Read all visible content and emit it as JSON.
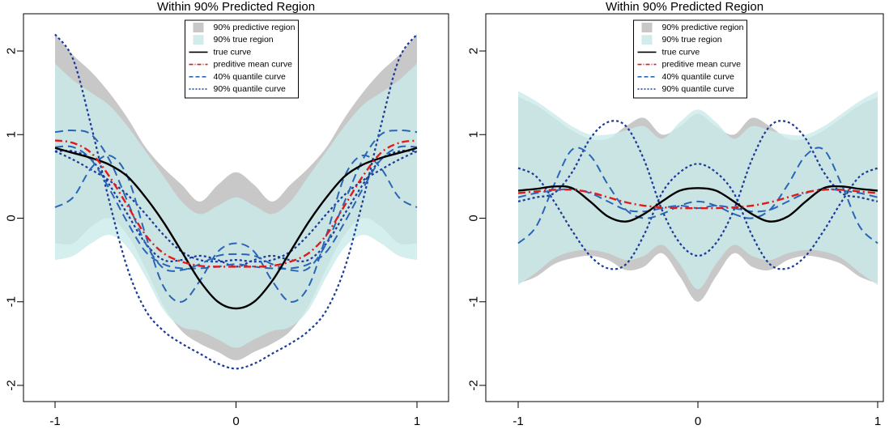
{
  "chart_data": [
    {
      "type": "line",
      "title": "Within 90% Predicted Region",
      "xlabel": "",
      "ylabel": "",
      "xlim": [
        -1,
        1
      ],
      "ylim": [
        -2.2,
        2.2
      ],
      "x_ticks": [
        "-1",
        "0",
        "1"
      ],
      "y_ticks": [
        "-2",
        "-1",
        "0",
        "1",
        "2"
      ],
      "grid": false,
      "legend_position": "top-center",
      "legend": [
        {
          "label": "90% predictive region",
          "kind": "fill",
          "color": "#c8c8c8"
        },
        {
          "label": "90% true region",
          "kind": "fill",
          "color": "#d2ecec"
        },
        {
          "label": "true curve",
          "kind": "solid",
          "color": "#000000"
        },
        {
          "label": "preditive mean curve",
          "kind": "dashdot",
          "color": "#e11b1b"
        },
        {
          "label": "40% quantile curve",
          "kind": "longdash",
          "color": "#2a66b5"
        },
        {
          "label": "90% quantile curve",
          "kind": "dotted",
          "color": "#1b3a98"
        }
      ],
      "x": [
        -1,
        -0.9,
        -0.8,
        -0.7,
        -0.6,
        -0.5,
        -0.4,
        -0.3,
        -0.2,
        -0.1,
        0,
        0.1,
        0.2,
        0.3,
        0.4,
        0.5,
        0.6,
        0.7,
        0.8,
        0.9,
        1
      ],
      "predictive_region": {
        "lower": [
          -0.3,
          -0.3,
          -0.1,
          0.0,
          -0.2,
          -0.6,
          -1.05,
          -1.35,
          -1.5,
          -1.6,
          -1.7,
          -1.6,
          -1.5,
          -1.35,
          -1.05,
          -0.6,
          -0.2,
          0.0,
          -0.1,
          -0.3,
          -0.3
        ],
        "upper": [
          2.2,
          1.95,
          1.75,
          1.5,
          1.2,
          0.85,
          0.6,
          0.4,
          0.2,
          0.4,
          0.55,
          0.4,
          0.2,
          0.4,
          0.6,
          0.85,
          1.2,
          1.5,
          1.75,
          1.95,
          2.2
        ]
      },
      "true_region": {
        "lower": [
          -0.5,
          -0.45,
          -0.3,
          -0.2,
          -0.35,
          -0.7,
          -1.1,
          -1.3,
          -1.35,
          -1.45,
          -1.55,
          -1.45,
          -1.35,
          -1.3,
          -1.1,
          -0.7,
          -0.35,
          -0.2,
          -0.3,
          -0.45,
          -0.5
        ],
        "upper": [
          1.85,
          1.65,
          1.5,
          1.35,
          1.1,
          0.8,
          0.5,
          0.2,
          0.05,
          0.15,
          0.25,
          0.15,
          0.05,
          0.2,
          0.5,
          0.8,
          1.1,
          1.35,
          1.5,
          1.65,
          1.85
        ]
      },
      "series": [
        {
          "name": "true curve",
          "style": "solid",
          "values": [
            0.84,
            0.78,
            0.72,
            0.64,
            0.5,
            0.25,
            -0.05,
            -0.4,
            -0.75,
            -1.0,
            -1.08,
            -1.0,
            -0.75,
            -0.4,
            -0.05,
            0.25,
            0.5,
            0.64,
            0.72,
            0.78,
            0.84
          ]
        },
        {
          "name": "preditive mean curve",
          "style": "dashdot",
          "values": [
            0.93,
            0.9,
            0.78,
            0.5,
            0.15,
            -0.2,
            -0.42,
            -0.52,
            -0.57,
            -0.58,
            -0.58,
            -0.58,
            -0.57,
            -0.52,
            -0.42,
            -0.2,
            0.15,
            0.5,
            0.78,
            0.9,
            0.93
          ]
        },
        {
          "name": "40% quantile curve",
          "style": "longdash",
          "values": [
            1.03,
            1.05,
            1.0,
            0.7,
            0.2,
            -0.3,
            -0.6,
            -0.62,
            -0.55,
            -0.45,
            -0.43,
            -0.45,
            -0.55,
            -0.62,
            -0.6,
            -0.3,
            0.2,
            0.7,
            1.0,
            1.05,
            1.03
          ]
        },
        {
          "name": "40% quantile curve",
          "style": "longdash",
          "values": [
            0.13,
            0.25,
            0.6,
            0.75,
            0.5,
            -0.2,
            -0.82,
            -1.0,
            -0.75,
            -0.4,
            -0.3,
            -0.4,
            -0.75,
            -1.0,
            -0.82,
            -0.2,
            0.5,
            0.75,
            0.6,
            0.25,
            0.13
          ]
        },
        {
          "name": "40% quantile curve",
          "style": "longdash",
          "values": [
            0.85,
            0.85,
            0.7,
            0.35,
            -0.05,
            -0.4,
            -0.55,
            -0.6,
            -0.6,
            -0.58,
            -0.55,
            -0.58,
            -0.6,
            -0.6,
            -0.55,
            -0.4,
            -0.05,
            0.35,
            0.7,
            0.85,
            0.85
          ]
        },
        {
          "name": "90% quantile curve",
          "style": "dotted",
          "values": [
            2.2,
            1.9,
            1.1,
            0.2,
            -0.6,
            -1.1,
            -1.35,
            -1.5,
            -1.62,
            -1.74,
            -1.8,
            -1.74,
            -1.62,
            -1.5,
            -1.35,
            -1.1,
            -0.6,
            0.2,
            1.1,
            1.9,
            2.2
          ]
        },
        {
          "name": "90% quantile curve",
          "style": "dotted",
          "values": [
            0.8,
            0.7,
            0.58,
            0.45,
            0.28,
            0.05,
            -0.2,
            -0.4,
            -0.5,
            -0.52,
            -0.5,
            -0.52,
            -0.5,
            -0.4,
            -0.2,
            0.05,
            0.28,
            0.45,
            0.58,
            0.7,
            0.8
          ]
        },
        {
          "name": "90% quantile curve",
          "style": "dotted",
          "values": [
            0.8,
            0.8,
            0.7,
            0.4,
            0.05,
            -0.3,
            -0.5,
            -0.5,
            -0.45,
            -0.5,
            -0.58,
            -0.5,
            -0.45,
            -0.5,
            -0.5,
            -0.3,
            0.05,
            0.4,
            0.7,
            0.8,
            0.8
          ]
        }
      ]
    },
    {
      "type": "line",
      "title": "Within 90% Predicted Region",
      "xlabel": "",
      "ylabel": "",
      "xlim": [
        -1,
        1
      ],
      "ylim": [
        -2.2,
        2.2
      ],
      "x_ticks": [
        "-1",
        "0",
        "1"
      ],
      "y_ticks": [
        "-2",
        "-1",
        "0",
        "1",
        "2"
      ],
      "grid": false,
      "legend_position": "top-center",
      "legend": [
        {
          "label": "90% predictive region",
          "kind": "fill",
          "color": "#c8c8c8"
        },
        {
          "label": "90% true region",
          "kind": "fill",
          "color": "#d2ecec"
        },
        {
          "label": "true curve",
          "kind": "solid",
          "color": "#000000"
        },
        {
          "label": "preditive mean curve",
          "kind": "dashdot",
          "color": "#e11b1b"
        },
        {
          "label": "40% quantile curve",
          "kind": "longdash",
          "color": "#2a66b5"
        },
        {
          "label": "90% quantile curve",
          "kind": "dotted",
          "color": "#1b3a98"
        }
      ],
      "x": [
        -1,
        -0.9,
        -0.8,
        -0.7,
        -0.6,
        -0.5,
        -0.4,
        -0.3,
        -0.2,
        -0.1,
        0,
        0.1,
        0.2,
        0.3,
        0.4,
        0.5,
        0.6,
        0.7,
        0.8,
        0.9,
        1
      ],
      "predictive_region": {
        "lower": [
          -0.78,
          -0.7,
          -0.55,
          -0.48,
          -0.45,
          -0.5,
          -0.62,
          -0.58,
          -0.42,
          -0.7,
          -1.0,
          -0.7,
          -0.42,
          -0.58,
          -0.62,
          -0.5,
          -0.45,
          -0.48,
          -0.55,
          -0.7,
          -0.78
        ],
        "upper": [
          1.45,
          1.35,
          1.2,
          1.05,
          0.95,
          0.95,
          1.1,
          1.2,
          1.0,
          1.1,
          1.25,
          1.1,
          1.0,
          1.2,
          1.1,
          0.95,
          0.95,
          1.05,
          1.2,
          1.35,
          1.45
        ]
      },
      "true_region": {
        "lower": [
          -0.8,
          -0.65,
          -0.48,
          -0.4,
          -0.38,
          -0.42,
          -0.5,
          -0.45,
          -0.32,
          -0.55,
          -0.85,
          -0.55,
          -0.32,
          -0.45,
          -0.5,
          -0.42,
          -0.38,
          -0.4,
          -0.48,
          -0.65,
          -0.8
        ],
        "upper": [
          1.52,
          1.4,
          1.25,
          1.1,
          1.0,
          1.0,
          1.05,
          1.1,
          0.95,
          1.15,
          1.3,
          1.15,
          0.95,
          1.1,
          1.05,
          1.0,
          1.0,
          1.1,
          1.25,
          1.4,
          1.52
        ]
      },
      "series": [
        {
          "name": "true curve",
          "style": "solid",
          "values": [
            0.33,
            0.35,
            0.38,
            0.36,
            0.2,
            0.02,
            -0.04,
            0.05,
            0.2,
            0.33,
            0.36,
            0.33,
            0.2,
            0.05,
            -0.04,
            0.02,
            0.2,
            0.36,
            0.38,
            0.35,
            0.33
          ]
        },
        {
          "name": "preditive mean curve",
          "style": "dashdot",
          "values": [
            0.3,
            0.32,
            0.34,
            0.34,
            0.31,
            0.25,
            0.19,
            0.15,
            0.13,
            0.12,
            0.12,
            0.12,
            0.13,
            0.15,
            0.19,
            0.25,
            0.31,
            0.34,
            0.34,
            0.32,
            0.3
          ]
        },
        {
          "name": "40% quantile curve",
          "style": "longdash",
          "values": [
            -0.3,
            -0.1,
            0.4,
            0.82,
            0.75,
            0.4,
            0.1,
            0.0,
            0.05,
            0.15,
            0.2,
            0.15,
            0.05,
            0.0,
            0.1,
            0.4,
            0.75,
            0.82,
            0.4,
            -0.1,
            -0.3
          ]
        },
        {
          "name": "40% quantile curve",
          "style": "longdash",
          "values": [
            0.25,
            0.3,
            0.33,
            0.35,
            0.3,
            0.2,
            0.1,
            0.08,
            0.12,
            0.15,
            0.12,
            0.15,
            0.12,
            0.08,
            0.1,
            0.2,
            0.3,
            0.35,
            0.33,
            0.3,
            0.25
          ]
        },
        {
          "name": "90% quantile curve",
          "style": "dotted",
          "values": [
            0.6,
            0.5,
            0.2,
            -0.15,
            -0.45,
            -0.6,
            -0.55,
            -0.2,
            0.3,
            0.55,
            0.65,
            0.55,
            0.3,
            -0.2,
            -0.55,
            -0.6,
            -0.45,
            -0.15,
            0.2,
            0.5,
            0.6
          ]
        },
        {
          "name": "90% quantile curve",
          "style": "dotted",
          "values": [
            0.2,
            0.25,
            0.3,
            0.55,
            0.95,
            1.15,
            1.1,
            0.7,
            0.1,
            -0.3,
            -0.45,
            -0.3,
            0.1,
            0.7,
            1.1,
            1.15,
            0.95,
            0.55,
            0.3,
            0.25,
            0.2
          ]
        }
      ]
    }
  ]
}
